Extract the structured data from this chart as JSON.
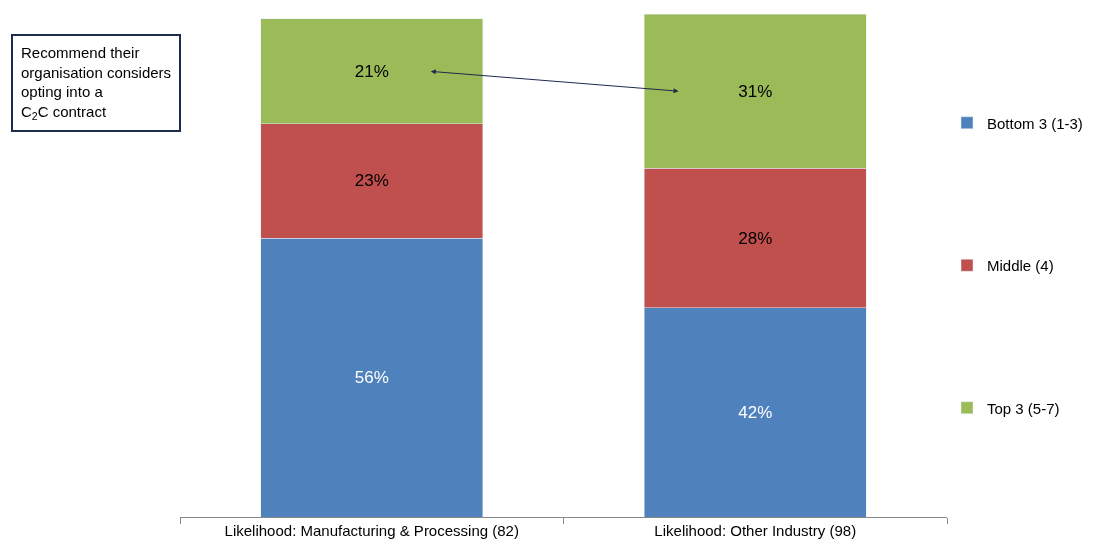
{
  "chart_data": {
    "type": "bar",
    "stacked": true,
    "categories": [
      "Likelihood: Manufacturing & Processing (82)",
      "Likelihood: Other Industry (98)"
    ],
    "series": [
      {
        "name": "Bottom 3 (1-3)",
        "color": "#4f81bd",
        "values": [
          56,
          42
        ],
        "value_labels": [
          "56%",
          "42%"
        ]
      },
      {
        "name": "Middle (4)",
        "color": "#c0504d",
        "values": [
          23,
          28
        ],
        "value_labels": [
          "23%",
          "28%"
        ]
      },
      {
        "name": "Top 3 (5-7)",
        "color": "#9bbb59",
        "values": [
          21,
          31
        ],
        "value_labels": [
          "21%",
          "31%"
        ]
      }
    ],
    "legend": "right",
    "annotations": [
      "Recommend their organisation considers opting into a C$_{2}$C contract"
    ]
  }
}
